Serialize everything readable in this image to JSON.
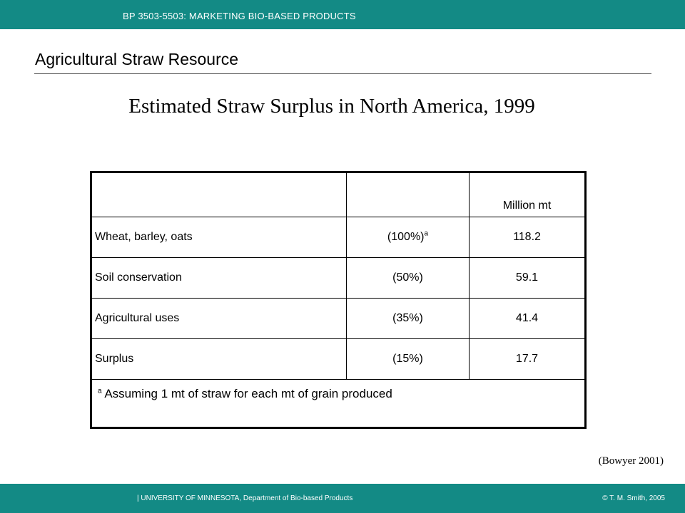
{
  "header": {
    "course": "BP 3503-5503: MARKETING BIO-BASED PRODUCTS",
    "section_title": "Agricultural Straw Resource"
  },
  "slide": {
    "title": "Estimated Straw Surplus in North America, 1999"
  },
  "table": {
    "header_col3": "Million mt",
    "rows": [
      {
        "label": "Wheat, barley, oats",
        "pct": "(100%)",
        "sup": "a",
        "value": "118.2"
      },
      {
        "label": "Soil conservation",
        "pct": "(50%)",
        "sup": "",
        "value": "59.1"
      },
      {
        "label": "Agricultural uses",
        "pct": "(35%)",
        "sup": "",
        "value": "41.4"
      },
      {
        "label": "Surplus",
        "pct": "(15%)",
        "sup": "",
        "value": "17.7"
      }
    ],
    "footnote_mark": "a",
    "footnote_text": " Assuming 1 mt of straw for each mt of grain produced"
  },
  "source": "(Bowyer 2001)",
  "footer": {
    "dept": "| UNIVERSITY OF MINNESOTA, Department of Bio-based Products",
    "copyright": "© T. M. Smith, 2005"
  },
  "colors": {
    "bar": "#138a85"
  }
}
